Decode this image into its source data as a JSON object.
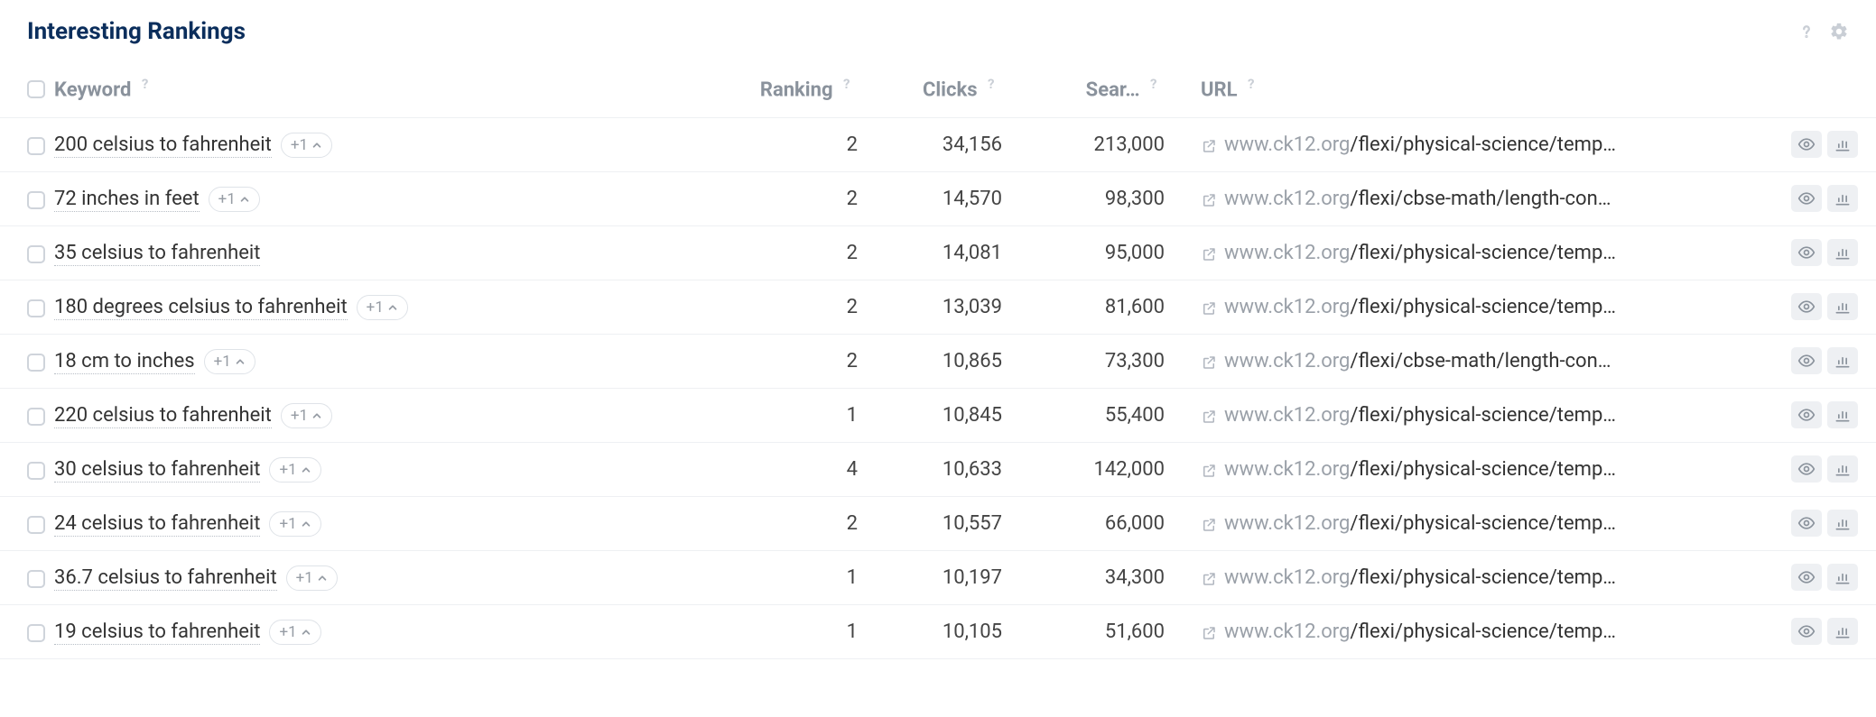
{
  "colors": {
    "title": "#0b2e5c",
    "header_text": "#8a929c",
    "border": "#eef0f3",
    "muted": "#9aa0a8",
    "text": "#333333",
    "badge_border": "#dfe3e8",
    "icon_muted": "#c9ced5",
    "action_bg": "#eef0f3"
  },
  "panel": {
    "title": "Interesting Rankings"
  },
  "columns": {
    "keyword": "Keyword",
    "ranking": "Ranking",
    "clicks": "Clicks",
    "search": "Sear…",
    "url": "URL"
  },
  "help_glyph": "?",
  "rows": [
    {
      "keyword": "200 celsius to fahrenheit",
      "badge": "+1",
      "ranking": "2",
      "clicks": "34,156",
      "search": "213,000",
      "url_domain": "www.ck12.org",
      "url_path": "/flexi/physical-science/temp…"
    },
    {
      "keyword": "72 inches in feet",
      "badge": "+1",
      "ranking": "2",
      "clicks": "14,570",
      "search": "98,300",
      "url_domain": "www.ck12.org",
      "url_path": "/flexi/cbse-math/length-con…"
    },
    {
      "keyword": "35 celsius to fahrenheit",
      "badge": "",
      "ranking": "2",
      "clicks": "14,081",
      "search": "95,000",
      "url_domain": "www.ck12.org",
      "url_path": "/flexi/physical-science/temp…"
    },
    {
      "keyword": "180 degrees celsius to fahrenheit",
      "badge": "+1",
      "ranking": "2",
      "clicks": "13,039",
      "search": "81,600",
      "url_domain": "www.ck12.org",
      "url_path": "/flexi/physical-science/temp…"
    },
    {
      "keyword": "18 cm to inches",
      "badge": "+1",
      "ranking": "2",
      "clicks": "10,865",
      "search": "73,300",
      "url_domain": "www.ck12.org",
      "url_path": "/flexi/cbse-math/length-con…"
    },
    {
      "keyword": "220 celsius to fahrenheit",
      "badge": "+1",
      "ranking": "1",
      "clicks": "10,845",
      "search": "55,400",
      "url_domain": "www.ck12.org",
      "url_path": "/flexi/physical-science/temp…"
    },
    {
      "keyword": "30 celsius to fahrenheit",
      "badge": "+1",
      "ranking": "4",
      "clicks": "10,633",
      "search": "142,000",
      "url_domain": "www.ck12.org",
      "url_path": "/flexi/physical-science/temp…"
    },
    {
      "keyword": "24 celsius to fahrenheit",
      "badge": "+1",
      "ranking": "2",
      "clicks": "10,557",
      "search": "66,000",
      "url_domain": "www.ck12.org",
      "url_path": "/flexi/physical-science/temp…"
    },
    {
      "keyword": "36.7 celsius to fahrenheit",
      "badge": "+1",
      "ranking": "1",
      "clicks": "10,197",
      "search": "34,300",
      "url_domain": "www.ck12.org",
      "url_path": "/flexi/physical-science/temp…"
    },
    {
      "keyword": "19 celsius to fahrenheit",
      "badge": "+1",
      "ranking": "1",
      "clicks": "10,105",
      "search": "51,600",
      "url_domain": "www.ck12.org",
      "url_path": "/flexi/physical-science/temp…"
    }
  ]
}
